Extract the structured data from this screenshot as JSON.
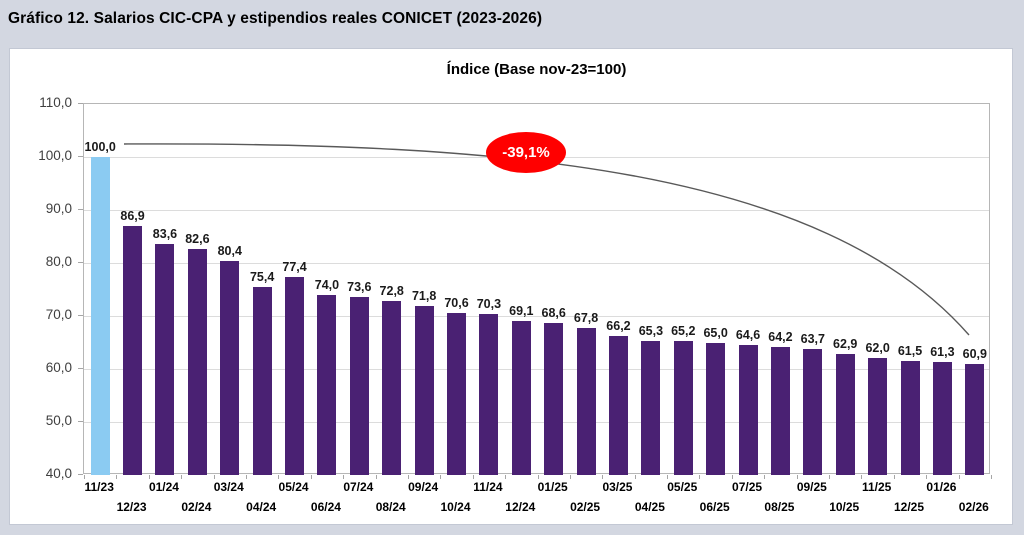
{
  "page": {
    "title": "Gráfico 12. Salarios CIC-CPA y estipendios reales CONICET (2023-2026)"
  },
  "colors": {
    "page_bg": "#D3D7E1",
    "panel_bg": "#FFFFFF",
    "bar": "#4A2173",
    "bar_highlight": "#8BCBF2",
    "grid": "#DCDCDC",
    "axis": "#A6A6A6",
    "annotation_line": "#595959",
    "badge_bg": "#FF0000",
    "badge_text": "#FFFFFF"
  },
  "chart_data": {
    "type": "bar",
    "title": "Índice (Base nov-23=100)",
    "categories": [
      "11/23",
      "12/23",
      "01/24",
      "02/24",
      "03/24",
      "04/24",
      "05/24",
      "06/24",
      "07/24",
      "08/24",
      "09/24",
      "10/24",
      "11/24",
      "12/24",
      "01/25",
      "02/25",
      "03/25",
      "04/25",
      "05/25",
      "06/25",
      "07/25",
      "08/25",
      "09/25",
      "10/25",
      "11/25",
      "12/25",
      "01/26",
      "02/26"
    ],
    "values": [
      100.0,
      86.9,
      83.6,
      82.6,
      80.4,
      75.4,
      77.4,
      74.0,
      73.6,
      72.8,
      71.8,
      70.6,
      70.3,
      69.1,
      68.6,
      67.8,
      66.2,
      65.3,
      65.2,
      65.0,
      64.6,
      64.2,
      63.7,
      62.9,
      62.0,
      61.5,
      61.3,
      60.9
    ],
    "value_labels": [
      "100,0",
      "86,9",
      "83,6",
      "82,6",
      "80,4",
      "75,4",
      "77,4",
      "74,0",
      "73,6",
      "72,8",
      "71,8",
      "70,6",
      "70,3",
      "69,1",
      "68,6",
      "67,8",
      "66,2",
      "65,3",
      "65,2",
      "65,0",
      "64,6",
      "64,2",
      "63,7",
      "62,9",
      "62,0",
      "61,5",
      "61,3",
      "60,9"
    ],
    "highlight_index": 0,
    "ylim": [
      40,
      110
    ],
    "ytick_labels": [
      "40,0",
      "50,0",
      "60,0",
      "70,0",
      "80,0",
      "90,0",
      "100,0",
      "110,0"
    ],
    "ytick_values": [
      40,
      50,
      60,
      70,
      80,
      90,
      100,
      110
    ],
    "grid": true,
    "legend": "none",
    "annotation_label": "-39,1%"
  }
}
